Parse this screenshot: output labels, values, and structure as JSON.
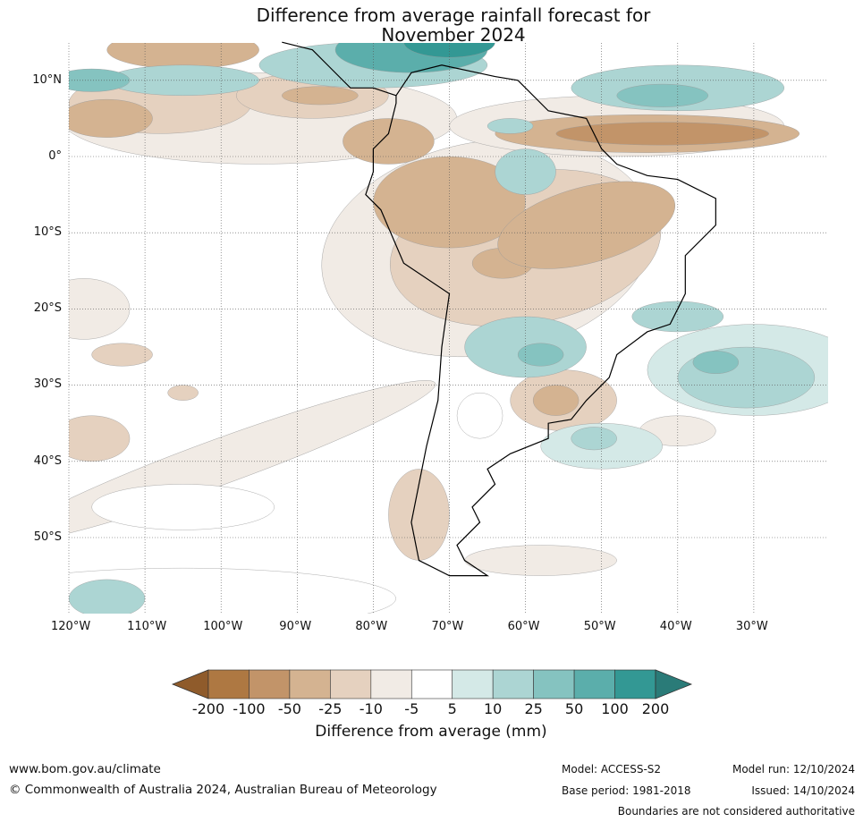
{
  "title_line1": "Difference from average rainfall forecast for",
  "title_line2": "November 2024",
  "lat_labels": [
    "10°N",
    "0°",
    "10°S",
    "20°S",
    "30°S",
    "40°S",
    "50°S"
  ],
  "lon_labels": [
    "120°W",
    "110°W",
    "100°W",
    "90°W",
    "80°W",
    "70°W",
    "60°W",
    "50°W",
    "40°W",
    "30°W"
  ],
  "colorbar": {
    "ticks": [
      "-200",
      "-100",
      "-50",
      "-25",
      "-10",
      "-5",
      "5",
      "10",
      "25",
      "50",
      "100",
      "200"
    ],
    "colors": [
      "#8f5b2b",
      "#ae7842",
      "#c29469",
      "#d4b391",
      "#e5d1bf",
      "#f1ebe5",
      "#ffffff",
      "#d4e9e7",
      "#acd5d3",
      "#85c3c0",
      "#5baeab",
      "#339894",
      "#2a7b78"
    ],
    "label": "Difference from average (mm)"
  },
  "footer": {
    "website": "www.bom.gov.au/climate",
    "copyright": "© Commonwealth of Australia 2024, Australian Bureau of Meteorology",
    "model": "Model: ACCESS-S2",
    "base_period": "Base period: 1981-2018",
    "model_run": "Model run: 12/10/2024",
    "issued": "Issued: 14/10/2024",
    "disclaimer": "Boundaries are not considered authoritative"
  }
}
